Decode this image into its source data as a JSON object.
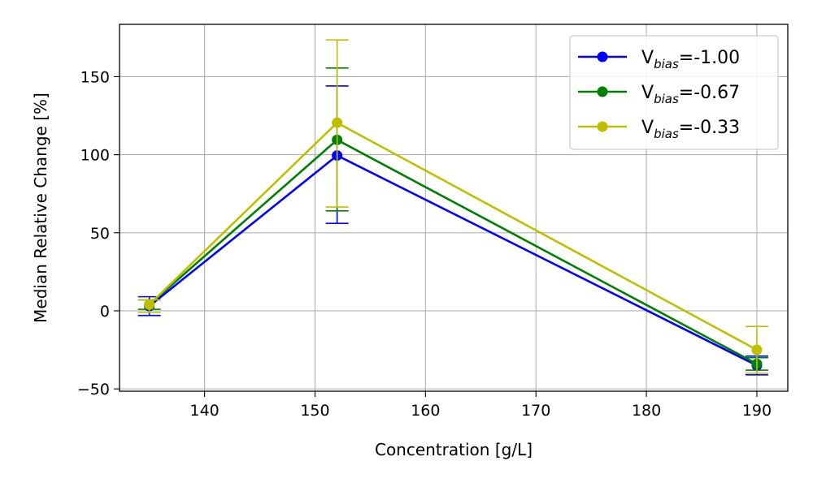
{
  "chart_data": {
    "type": "line",
    "title": "",
    "xlabel": "Concentration [g/L]",
    "ylabel": "Median Relative Change [%]",
    "xlim": [
      132.3,
      192.8
    ],
    "ylim": [
      -51.5,
      183.5
    ],
    "xticks": [
      140,
      150,
      160,
      170,
      180,
      190
    ],
    "yticks": [
      -50,
      0,
      50,
      100,
      150
    ],
    "grid": true,
    "legend_position": "top-right",
    "x": [
      135,
      152,
      190
    ],
    "series": [
      {
        "name_main": "V",
        "name_sub": "bias",
        "name_value": "=-1.00",
        "color": "#0000ff",
        "values": [
          3,
          99.5,
          -35
        ],
        "err_low": [
          6,
          43.5,
          6
        ],
        "err_high": [
          6,
          44.5,
          6
        ]
      },
      {
        "name_main": "V",
        "name_sub": "bias",
        "name_value": "=-0.67",
        "color": "#008000",
        "values": [
          4,
          109.5,
          -34
        ],
        "err_low": [
          3,
          45.5,
          4
        ],
        "err_high": [
          3,
          46,
          4
        ]
      },
      {
        "name_main": "V",
        "name_sub": "bias",
        "name_value": "=-0.33",
        "color": "#bfbf00",
        "values": [
          4,
          120.5,
          -25
        ],
        "err_low": [
          5,
          54,
          15
        ],
        "err_high": [
          3,
          53,
          15
        ]
      }
    ]
  }
}
